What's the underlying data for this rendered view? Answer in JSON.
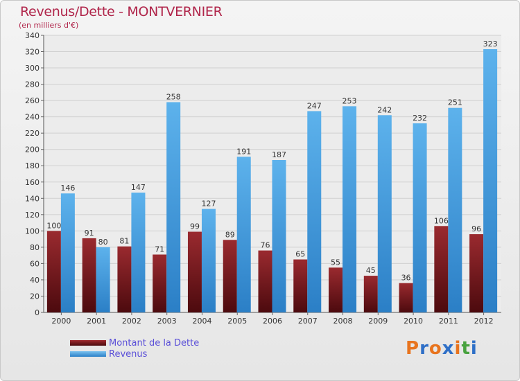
{
  "page": {
    "title": "Revenus/Dette - MONTVERNIER",
    "subtitle": "(en milliers d'€)",
    "logo": [
      "P",
      "r",
      "o",
      "x",
      "i",
      "t",
      "i"
    ],
    "logo_colors": [
      "#e8741e",
      "#2e6fc7",
      "#e8741e",
      "#2e6fc7",
      "#e8741e",
      "#48a23f",
      "#2e6fc7"
    ]
  },
  "legend": {
    "items": [
      {
        "label": "Montant de la Dette",
        "color": "#7a1b1f"
      },
      {
        "label": "Revenus",
        "color": "#4ea7e6"
      }
    ]
  },
  "chart_data": {
    "type": "bar",
    "title": "Revenus/Dette - MONTVERNIER",
    "ylabel": "(en milliers d'€)",
    "xlabel": "",
    "categories": [
      "2000",
      "2001",
      "2002",
      "2003",
      "2004",
      "2005",
      "2006",
      "2007",
      "2008",
      "2009",
      "2010",
      "2011",
      "2012"
    ],
    "series": [
      {
        "name": "Montant de la Dette",
        "color": "#7a1b1f",
        "values": [
          100,
          91,
          81,
          71,
          99,
          89,
          76,
          65,
          55,
          45,
          36,
          106,
          96
        ]
      },
      {
        "name": "Revenus",
        "color": "#4ea7e6",
        "values": [
          146,
          80,
          147,
          258,
          127,
          191,
          187,
          247,
          253,
          242,
          232,
          251,
          323
        ]
      }
    ],
    "ylim": [
      0,
      340
    ],
    "yticks": [
      0,
      20,
      40,
      60,
      80,
      100,
      120,
      140,
      160,
      180,
      200,
      220,
      240,
      260,
      280,
      300,
      320,
      340
    ],
    "grid": true,
    "legend_position": "bottom-left"
  }
}
